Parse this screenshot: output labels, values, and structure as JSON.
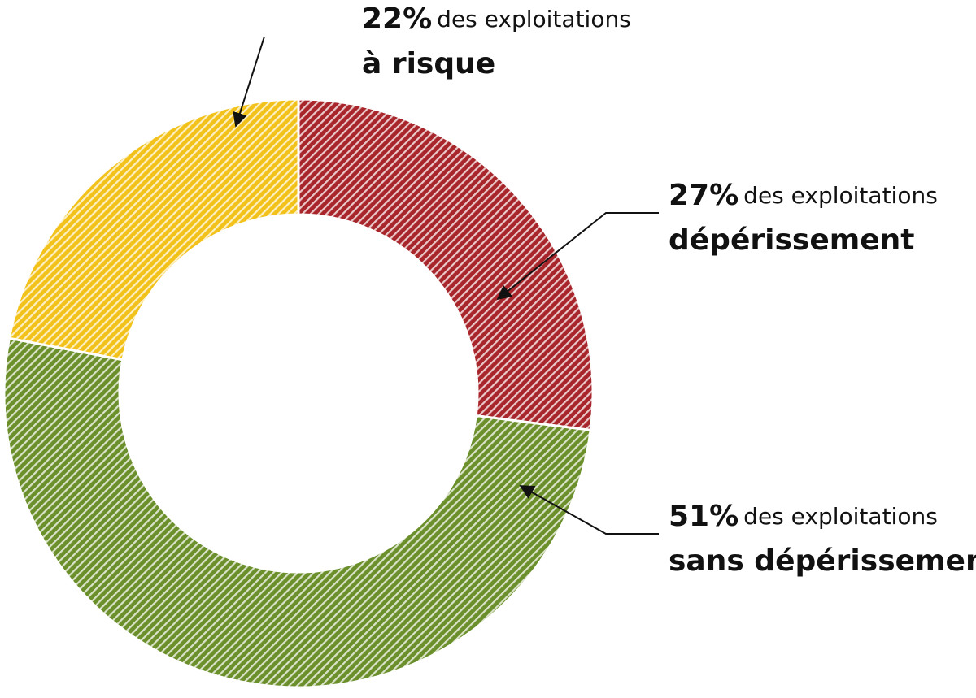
{
  "chart_data": {
    "type": "donut",
    "categories": [
      "dépérissement",
      "sans dépérissement",
      "à risque"
    ],
    "values": [
      27,
      51,
      22
    ],
    "value_labels": [
      "27%",
      "51%",
      "22%"
    ],
    "label_text": "des exploitations",
    "colors": [
      "#a8262b",
      "#6b8f2a",
      "#f2c21a"
    ]
  }
}
